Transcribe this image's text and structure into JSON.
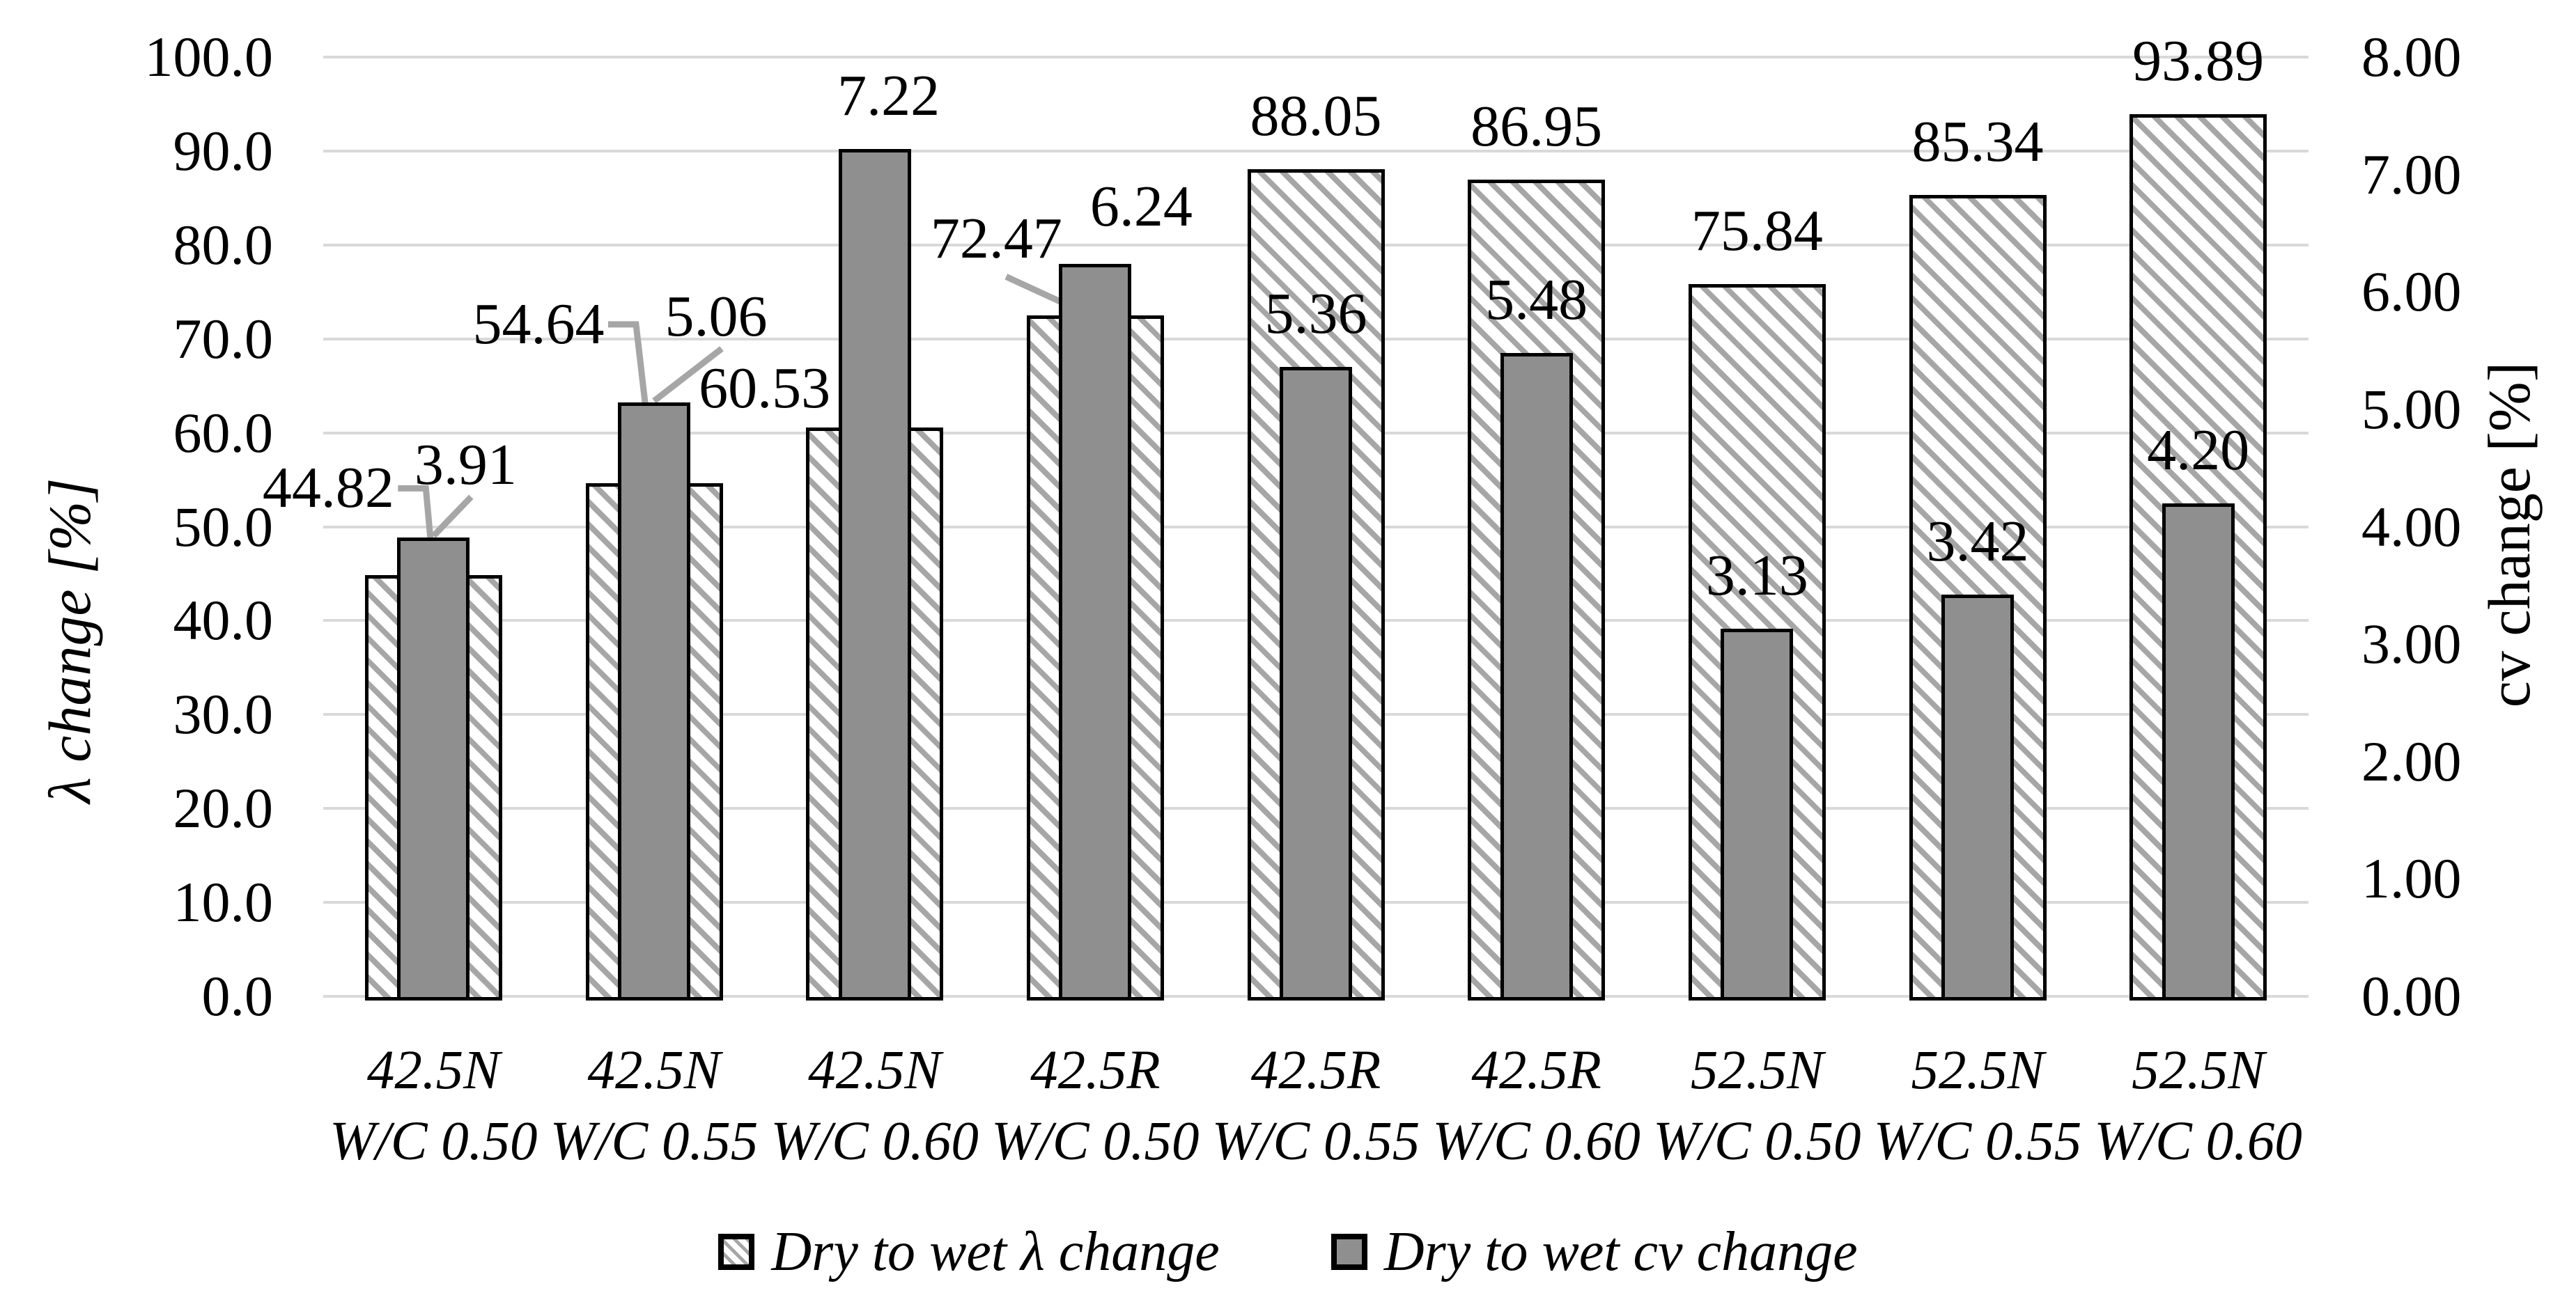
{
  "chart_data": {
    "type": "bar",
    "title": "",
    "categories": [
      [
        "42.5N",
        "W/C 0.50"
      ],
      [
        "42.5N",
        "W/C 0.55"
      ],
      [
        "42.5N",
        "W/C 0.60"
      ],
      [
        "42.5R",
        "W/C 0.50"
      ],
      [
        "42.5R",
        "W/C 0.55"
      ],
      [
        "42.5R",
        "W/C 0.60"
      ],
      [
        "52.5N",
        "W/C 0.50"
      ],
      [
        "52.5N",
        "W/C 0.55"
      ],
      [
        "52.5N",
        "W/C 0.60"
      ]
    ],
    "series": [
      {
        "name": "Dry to wet λ change",
        "axis": "left",
        "style": "hatched",
        "values": [
          44.82,
          54.64,
          60.53,
          72.47,
          88.05,
          86.95,
          75.84,
          85.34,
          93.89
        ]
      },
      {
        "name": "Dry to wet cv change",
        "axis": "right",
        "style": "solid",
        "values": [
          3.91,
          5.06,
          7.22,
          6.24,
          5.36,
          5.48,
          3.13,
          3.42,
          4.2
        ]
      }
    ],
    "left_axis": {
      "title": "λ change [%]",
      "min": 0,
      "max": 100,
      "step": 10,
      "tick_labels": [
        "0.0",
        "10.0",
        "20.0",
        "30.0",
        "40.0",
        "50.0",
        "60.0",
        "70.0",
        "80.0",
        "90.0",
        "100.0"
      ]
    },
    "right_axis": {
      "title": "cv change [%]",
      "min": 0,
      "max": 8,
      "step": 1,
      "tick_labels": [
        "0.00",
        "1.00",
        "2.00",
        "3.00",
        "4.00",
        "5.00",
        "6.00",
        "7.00",
        "8.00"
      ]
    },
    "grid": true,
    "legend_position": "bottom",
    "colors": {
      "solid_bar": "#8f8f8f",
      "hatch_stripe": "#a6a6a6",
      "bar_outline": "#000000",
      "gridline": "#d9d9d9",
      "leader_line": "#a6a6a6",
      "text": "#000000",
      "background": "#ffffff"
    },
    "label_hints": {
      "s0_0": {
        "dx": -151,
        "dy": -125,
        "leader": "bent"
      },
      "s0_1": {
        "dx": -166,
        "dy": -228,
        "leader": "bent"
      },
      "s0_2": {
        "dx": -158,
        "dy": -56,
        "leader": null
      },
      "s0_3": {
        "dx": -142,
        "dy": -110,
        "leader": "down"
      },
      "s1_0": {
        "dx": 46,
        "dy": -104,
        "leader": "up"
      },
      "s1_1": {
        "dx": 89,
        "dy": -123,
        "leader": "up"
      },
      "s1_2": {
        "dx": 20,
        "dy": -76,
        "leader": null
      },
      "s1_3": {
        "dx": 66,
        "dy": -82,
        "leader": null
      }
    }
  }
}
